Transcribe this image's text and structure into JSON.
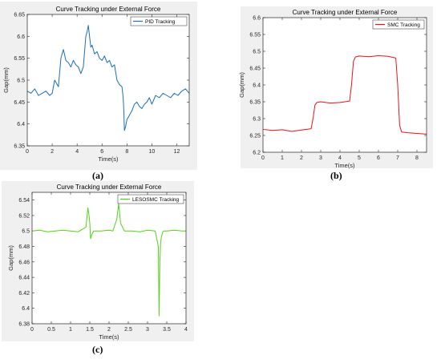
{
  "figure_labels": {
    "a": "(a)",
    "b": "(b)",
    "c": "(c)"
  },
  "chart_data": [
    {
      "id": "a",
      "type": "line",
      "title": "Curve Tracking under External Force",
      "xlabel": "Time(s)",
      "ylabel": "Gap(mm)",
      "xlim": [
        0,
        13
      ],
      "ylim": [
        6.35,
        6.65
      ],
      "xticks": [
        0,
        2,
        4,
        6,
        8,
        10,
        12
      ],
      "yticks": [
        6.35,
        6.4,
        6.45,
        6.5,
        6.55,
        6.6,
        6.65
      ],
      "xtick_labels": [
        "0",
        "2",
        "4",
        "6",
        "8",
        "10",
        "12"
      ],
      "ytick_labels": [
        "6.35",
        "6.4",
        "6.45",
        "6.5",
        "6.55",
        "6.6",
        "6.65"
      ],
      "legend": "top-right",
      "grid": false,
      "series": [
        {
          "name": "PID Tracking",
          "color": "#1f6fb4",
          "x": [
            0,
            0.3,
            0.6,
            0.9,
            1.2,
            1.5,
            1.8,
            2.0,
            2.2,
            2.5,
            2.7,
            2.9,
            3.1,
            3.3,
            3.5,
            3.7,
            3.9,
            4.1,
            4.3,
            4.5,
            4.7,
            4.8,
            4.9,
            5.0,
            5.1,
            5.2,
            5.4,
            5.6,
            5.8,
            6.0,
            6.2,
            6.4,
            6.6,
            6.8,
            7.0,
            7.2,
            7.4,
            7.6,
            7.7,
            7.75,
            7.8,
            7.9,
            8.0,
            8.2,
            8.4,
            8.6,
            8.8,
            9.0,
            9.2,
            9.4,
            9.6,
            9.8,
            10.0,
            10.3,
            10.6,
            10.9,
            11.2,
            11.5,
            11.8,
            12.1,
            12.4,
            12.7,
            13.0
          ],
          "y": [
            6.475,
            6.47,
            6.48,
            6.465,
            6.47,
            6.475,
            6.465,
            6.47,
            6.5,
            6.485,
            6.55,
            6.57,
            6.545,
            6.54,
            6.53,
            6.545,
            6.535,
            6.53,
            6.515,
            6.53,
            6.6,
            6.61,
            6.625,
            6.6,
            6.575,
            6.58,
            6.56,
            6.565,
            6.55,
            6.545,
            6.555,
            6.54,
            6.545,
            6.53,
            6.535,
            6.5,
            6.49,
            6.485,
            6.46,
            6.43,
            6.385,
            6.395,
            6.41,
            6.42,
            6.43,
            6.445,
            6.45,
            6.44,
            6.435,
            6.445,
            6.45,
            6.46,
            6.445,
            6.465,
            6.46,
            6.47,
            6.465,
            6.46,
            6.47,
            6.465,
            6.475,
            6.48,
            6.47
          ]
        }
      ]
    },
    {
      "id": "b",
      "type": "line",
      "title": "Curve Tracking under External Force",
      "xlabel": "Time(s)",
      "ylabel": "Gap(mm)",
      "xlim": [
        0,
        8.5
      ],
      "ylim": [
        6.2,
        6.6
      ],
      "xticks": [
        0,
        1,
        2,
        3,
        4,
        5,
        6,
        7,
        8
      ],
      "yticks": [
        6.2,
        6.25,
        6.3,
        6.35,
        6.4,
        6.45,
        6.5,
        6.55,
        6.6
      ],
      "xtick_labels": [
        "0",
        "1",
        "2",
        "3",
        "4",
        "5",
        "6",
        "7",
        "8"
      ],
      "ytick_labels": [
        "6.2",
        "6.25",
        "6.3",
        "6.35",
        "6.4",
        "6.45",
        "6.5",
        "6.55",
        "6.6"
      ],
      "legend": "top-right",
      "grid": false,
      "series": [
        {
          "name": "SMC Tracking",
          "color": "#e8131b",
          "x": [
            0,
            0.5,
            1.0,
            1.5,
            2.0,
            2.5,
            2.6,
            2.7,
            2.8,
            3.0,
            3.5,
            4.0,
            4.5,
            4.6,
            4.7,
            4.8,
            5.0,
            5.5,
            6.0,
            6.5,
            6.9,
            7.0,
            7.1,
            7.2,
            7.5,
            8.0,
            8.5
          ],
          "y": [
            6.268,
            6.265,
            6.267,
            6.262,
            6.266,
            6.27,
            6.3,
            6.34,
            6.348,
            6.35,
            6.346,
            6.348,
            6.352,
            6.4,
            6.47,
            6.483,
            6.486,
            6.484,
            6.487,
            6.485,
            6.48,
            6.4,
            6.28,
            6.26,
            6.258,
            6.256,
            6.254
          ]
        }
      ]
    },
    {
      "id": "c",
      "type": "line",
      "title": "Curve Tracking under External Force",
      "xlabel": "Time(s)",
      "ylabel": "Gap(mm)",
      "xlim": [
        0,
        4
      ],
      "ylim": [
        6.38,
        6.55
      ],
      "xticks": [
        0,
        0.5,
        1,
        1.5,
        2,
        2.5,
        3,
        3.5,
        4
      ],
      "yticks": [
        6.38,
        6.4,
        6.42,
        6.44,
        6.46,
        6.48,
        6.5,
        6.52,
        6.54
      ],
      "xtick_labels": [
        "0",
        "0.5",
        "1",
        "1.5",
        "2",
        "2.5",
        "3",
        "3.5",
        "4"
      ],
      "ytick_labels": [
        "6.38",
        "6.4",
        "6.42",
        "6.44",
        "6.46",
        "6.48",
        "6.5",
        "6.52",
        "6.54"
      ],
      "legend": "top-right",
      "grid": false,
      "series": [
        {
          "name": "LESOSMC Tracking",
          "color": "#56d11c",
          "x": [
            0,
            0.2,
            0.4,
            0.6,
            0.8,
            1.0,
            1.2,
            1.4,
            1.45,
            1.48,
            1.5,
            1.52,
            1.55,
            1.6,
            1.8,
            2.0,
            2.1,
            2.2,
            2.25,
            2.28,
            2.3,
            2.35,
            2.4,
            2.6,
            2.8,
            3.0,
            3.2,
            3.28,
            3.3,
            3.32,
            3.34,
            3.36,
            3.38,
            3.4,
            3.42,
            3.5,
            3.7,
            3.9,
            4.0
          ],
          "y": [
            6.5,
            6.501,
            6.499,
            6.5,
            6.501,
            6.5,
            6.499,
            6.505,
            6.53,
            6.52,
            6.51,
            6.49,
            6.495,
            6.5,
            6.5,
            6.501,
            6.5,
            6.515,
            6.535,
            6.52,
            6.51,
            6.505,
            6.5,
            6.5,
            6.499,
            6.501,
            6.5,
            6.48,
            6.39,
            6.46,
            6.485,
            6.492,
            6.496,
            6.499,
            6.5,
            6.5,
            6.501,
            6.5,
            6.5
          ]
        }
      ]
    }
  ]
}
